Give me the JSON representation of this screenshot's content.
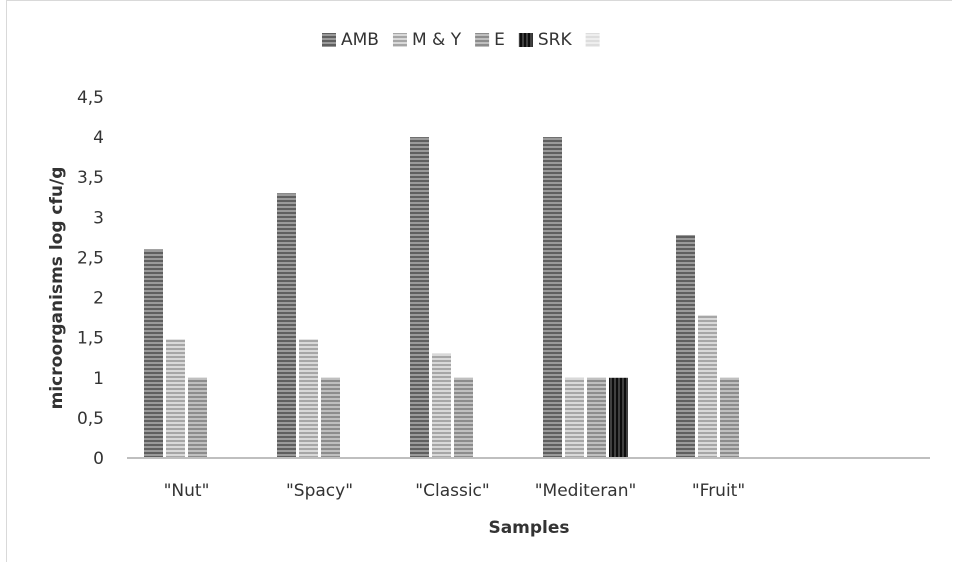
{
  "chart_data": {
    "type": "bar",
    "title": "",
    "xlabel": "Samples",
    "ylabel": "microorganisms log cfu/g",
    "categories": [
      "\"Nut\"",
      "\"Spacy\"",
      "\"Classic\"",
      "\"Mediteran\"",
      "\"Fruit\""
    ],
    "ylim": [
      0,
      4.5
    ],
    "yticks": [
      "0",
      "0,5",
      "1",
      "1,5",
      "2",
      "2,5",
      "3",
      "3,5",
      "4",
      "4,5"
    ],
    "grid": false,
    "legend_position": "top",
    "series": [
      {
        "name": "AMB",
        "values": [
          2.6,
          3.3,
          4.0,
          4.0,
          2.78
        ],
        "color": "#7f7f7f"
      },
      {
        "name": "M & Y",
        "values": [
          1.48,
          1.48,
          1.3,
          1.0,
          1.78
        ],
        "color": "#bfbfbf"
      },
      {
        "name": "E",
        "values": [
          1.0,
          1.0,
          1.0,
          1.0,
          1.0
        ],
        "color": "#a6a6a6"
      },
      {
        "name": "SRK",
        "values": [
          0,
          0,
          0,
          1.0,
          0
        ],
        "color": "#262626"
      },
      {
        "name": "",
        "values": [
          0,
          0,
          0,
          0,
          0
        ],
        "color": "#e7e7e7"
      }
    ]
  }
}
